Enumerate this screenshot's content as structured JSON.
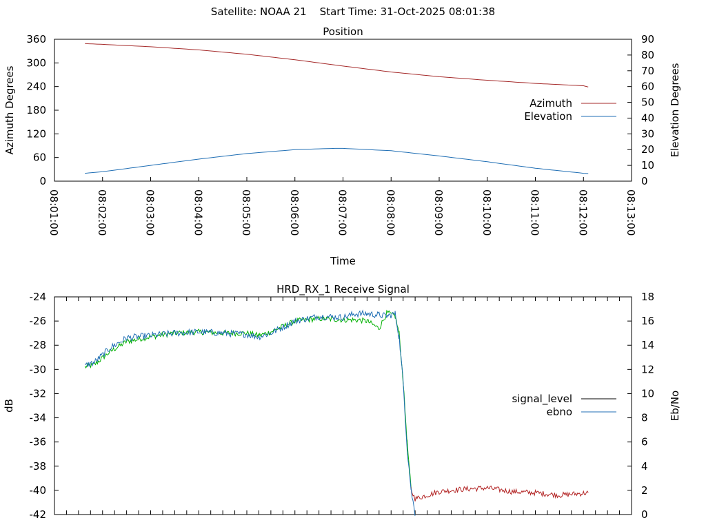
{
  "header": {
    "title": "Satellite: NOAA 21    Start Time: 31-Oct-2025 08:01:38"
  },
  "chart_data": [
    {
      "type": "line",
      "title": "Position",
      "xlabel": "Time",
      "ylabel": "Azimuth Degrees",
      "y2label": "Elevation Degrees",
      "xlim": [
        "08:01:00",
        "08:13:00"
      ],
      "x_ticks": [
        "08:01:00",
        "08:02:00",
        "08:03:00",
        "08:04:00",
        "08:05:00",
        "08:06:00",
        "08:07:00",
        "08:08:00",
        "08:09:00",
        "08:10:00",
        "08:11:00",
        "08:12:00",
        "08:13:00"
      ],
      "ylim": [
        0,
        360
      ],
      "y_ticks": [
        "0",
        "60",
        "120",
        "180",
        "240",
        "300",
        "360"
      ],
      "y2lim": [
        0,
        90
      ],
      "y2_ticks": [
        "0",
        "10",
        "20",
        "30",
        "40",
        "50",
        "60",
        "70",
        "80",
        "90"
      ],
      "grid": false,
      "legend": "right",
      "series": [
        {
          "name": "Azimuth",
          "axis": "y",
          "color": "#a52a2a",
          "x": [
            "08:01:38",
            "08:02:00",
            "08:03:00",
            "08:04:00",
            "08:05:00",
            "08:06:00",
            "08:07:00",
            "08:08:00",
            "08:09:00",
            "08:10:00",
            "08:11:00",
            "08:12:00",
            "08:12:06"
          ],
          "y": [
            349,
            347,
            341,
            333,
            322,
            308,
            292,
            277,
            265,
            256,
            248,
            242,
            239
          ]
        },
        {
          "name": "Elevation",
          "axis": "y2",
          "color": "#1f6eb4",
          "x": [
            "08:01:38",
            "08:02:00",
            "08:03:00",
            "08:04:00",
            "08:05:00",
            "08:06:00",
            "08:06:50",
            "08:07:00",
            "08:08:00",
            "08:09:00",
            "08:10:00",
            "08:11:00",
            "08:12:00",
            "08:12:06"
          ],
          "y": [
            5,
            6,
            10,
            14,
            17.5,
            20,
            20.8,
            20.8,
            19.3,
            16,
            12.3,
            8.2,
            5,
            4.8
          ]
        }
      ]
    },
    {
      "type": "line",
      "title": "HRD_RX_1 Receive Signal",
      "ylabel": "dB",
      "y2label": "Eb/No",
      "xlim": [
        "08:01:00",
        "08:13:00"
      ],
      "ylim": [
        -42,
        -24
      ],
      "y_ticks": [
        "-42",
        "-40",
        "-38",
        "-36",
        "-34",
        "-32",
        "-30",
        "-28",
        "-26",
        "-24"
      ],
      "y2lim": [
        0,
        18
      ],
      "y2_ticks": [
        "0",
        "2",
        "4",
        "6",
        "8",
        "10",
        "12",
        "14",
        "16",
        "18"
      ],
      "grid": false,
      "legend": "right",
      "legend_entries": [
        {
          "name": "signal_level",
          "color": "#000000"
        },
        {
          "name": "ebno",
          "color": "#1f6eb4"
        }
      ],
      "series": [
        {
          "name": "signal_level",
          "axis": "y",
          "colors": [
            "#00b000",
            "#b22222"
          ],
          "x": [
            "08:01:38",
            "08:01:50",
            "08:02:10",
            "08:02:30",
            "08:03:00",
            "08:03:30",
            "08:04:00",
            "08:04:30",
            "08:05:00",
            "08:05:15",
            "08:05:30",
            "08:06:00",
            "08:06:30",
            "08:07:00",
            "08:07:15",
            "08:07:30",
            "08:07:45",
            "08:07:55",
            "08:08:05",
            "08:08:10",
            "08:08:15",
            "08:08:20",
            "08:08:25",
            "08:08:30",
            "08:08:40",
            "08:09:00",
            "08:09:30",
            "08:10:00",
            "08:10:30",
            "08:11:00",
            "08:11:30",
            "08:12:06"
          ],
          "y": [
            -29.8,
            -29.6,
            -28.5,
            -27.7,
            -27.3,
            -27.0,
            -26.9,
            -27.0,
            -27.0,
            -27.2,
            -26.9,
            -26.0,
            -25.8,
            -25.9,
            -25.9,
            -26.0,
            -26.6,
            -25.3,
            -25.6,
            -27.0,
            -31.0,
            -36.0,
            -40.0,
            -40.7,
            -40.5,
            -40.1,
            -39.9,
            -39.8,
            -40.1,
            -40.2,
            -40.4,
            -40.2
          ]
        },
        {
          "name": "ebno",
          "axis": "y2",
          "color": "#1f6eb4",
          "x": [
            "08:01:38",
            "08:01:50",
            "08:02:10",
            "08:02:30",
            "08:03:00",
            "08:03:30",
            "08:04:00",
            "08:04:30",
            "08:05:00",
            "08:05:15",
            "08:05:30",
            "08:06:00",
            "08:06:30",
            "08:07:00",
            "08:07:15",
            "08:07:30",
            "08:07:45",
            "08:07:55",
            "08:08:05",
            "08:08:10",
            "08:08:15",
            "08:08:20",
            "08:08:25",
            "08:08:30"
          ],
          "y": [
            12.3,
            12.6,
            13.8,
            14.6,
            14.8,
            15.0,
            15.1,
            15.0,
            14.9,
            14.7,
            15.0,
            16.0,
            16.4,
            16.3,
            16.6,
            16.6,
            16.5,
            16.4,
            16.6,
            14.7,
            11.0,
            5.5,
            2.0,
            0
          ]
        }
      ]
    }
  ]
}
